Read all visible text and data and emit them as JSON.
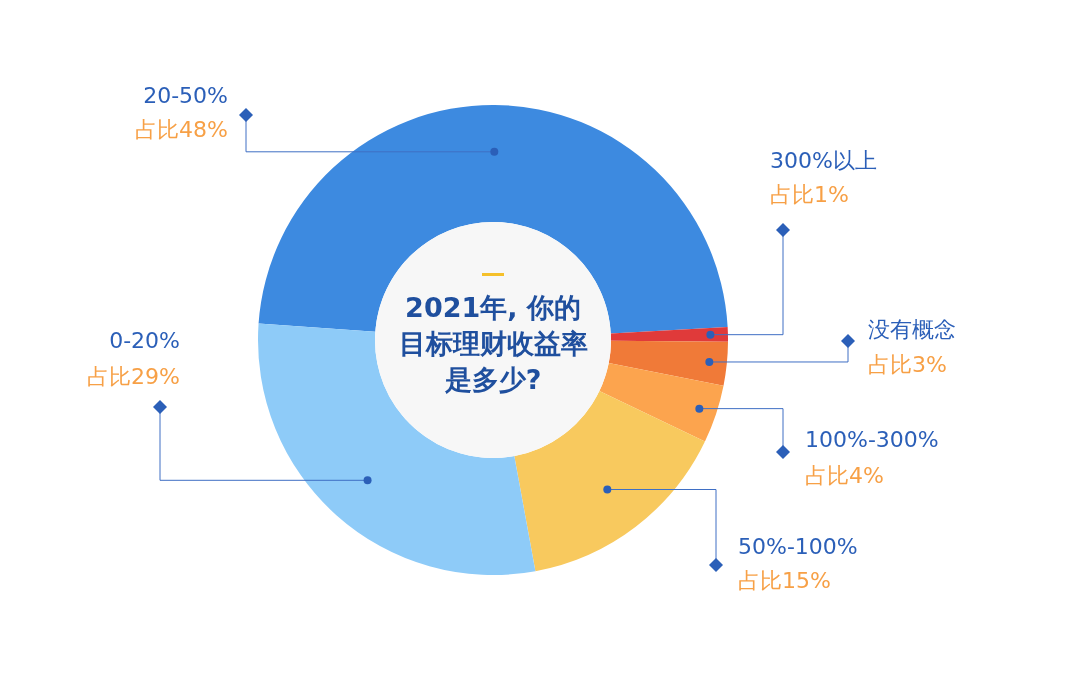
{
  "chart_data": {
    "type": "donut",
    "title": "2021年, 你的目标理财收益率是多少?",
    "categories": [
      "20-50%",
      "300%以上",
      "没有概念",
      "100%-300%",
      "50%-100%",
      "0-20%"
    ],
    "values": [
      48,
      1,
      3,
      4,
      15,
      29
    ],
    "colors": [
      "#3d8ae0",
      "#e03a3a",
      "#f07a38",
      "#fca44e",
      "#f8c95e",
      "#8ecbf8"
    ],
    "value_labels": [
      "占比48%",
      "占比1%",
      "占比3%",
      "占比4%",
      "占比15%",
      "占比29%"
    ],
    "legend": false
  }
}
